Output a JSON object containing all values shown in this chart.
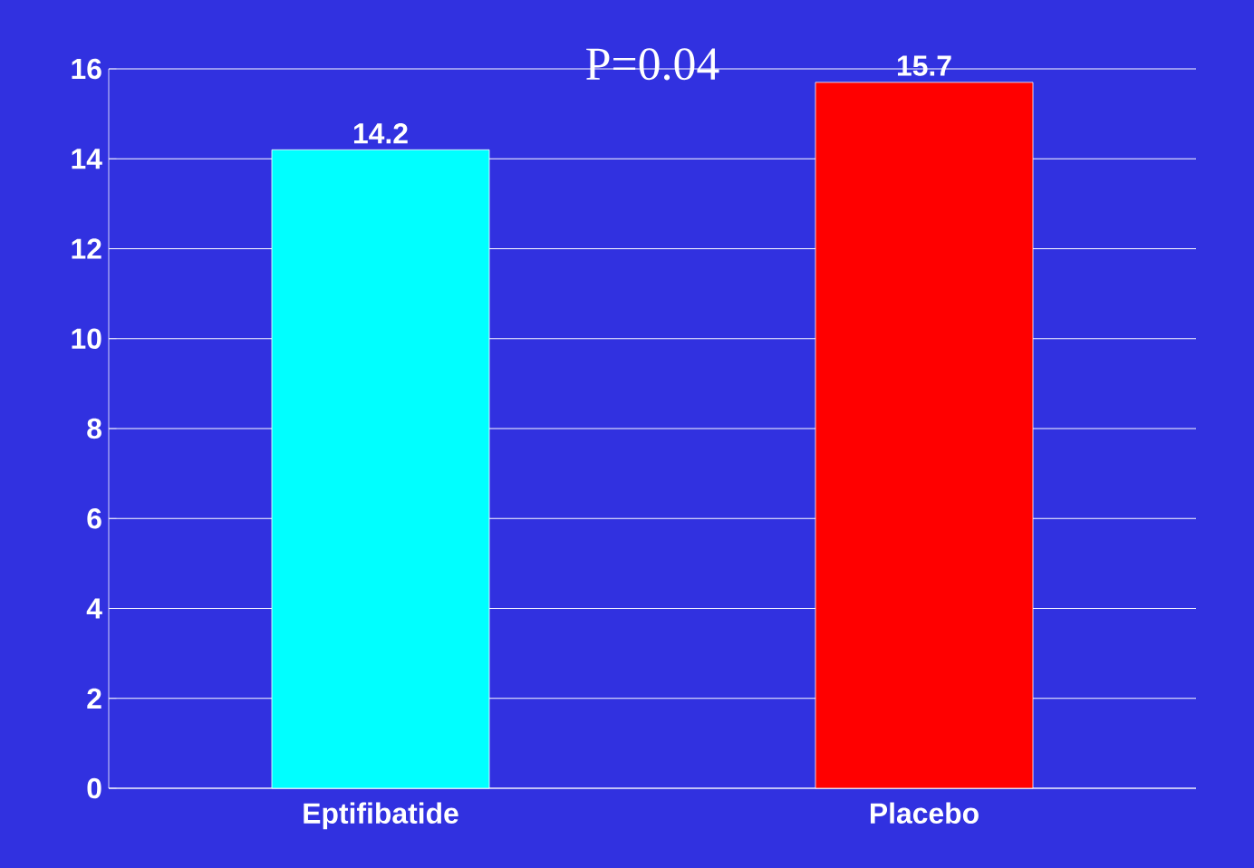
{
  "chart_data": {
    "type": "bar",
    "categories": [
      "Eptifibatide",
      "Placebo"
    ],
    "values": [
      14.2,
      15.7
    ],
    "colors": [
      "#00ffff",
      "#ff0000"
    ],
    "ylim": [
      0,
      16
    ],
    "yticks": [
      0,
      2,
      4,
      6,
      8,
      10,
      12,
      14,
      16
    ],
    "grid": "y",
    "data_labels": true,
    "annotations": [
      "P=0.04"
    ]
  }
}
